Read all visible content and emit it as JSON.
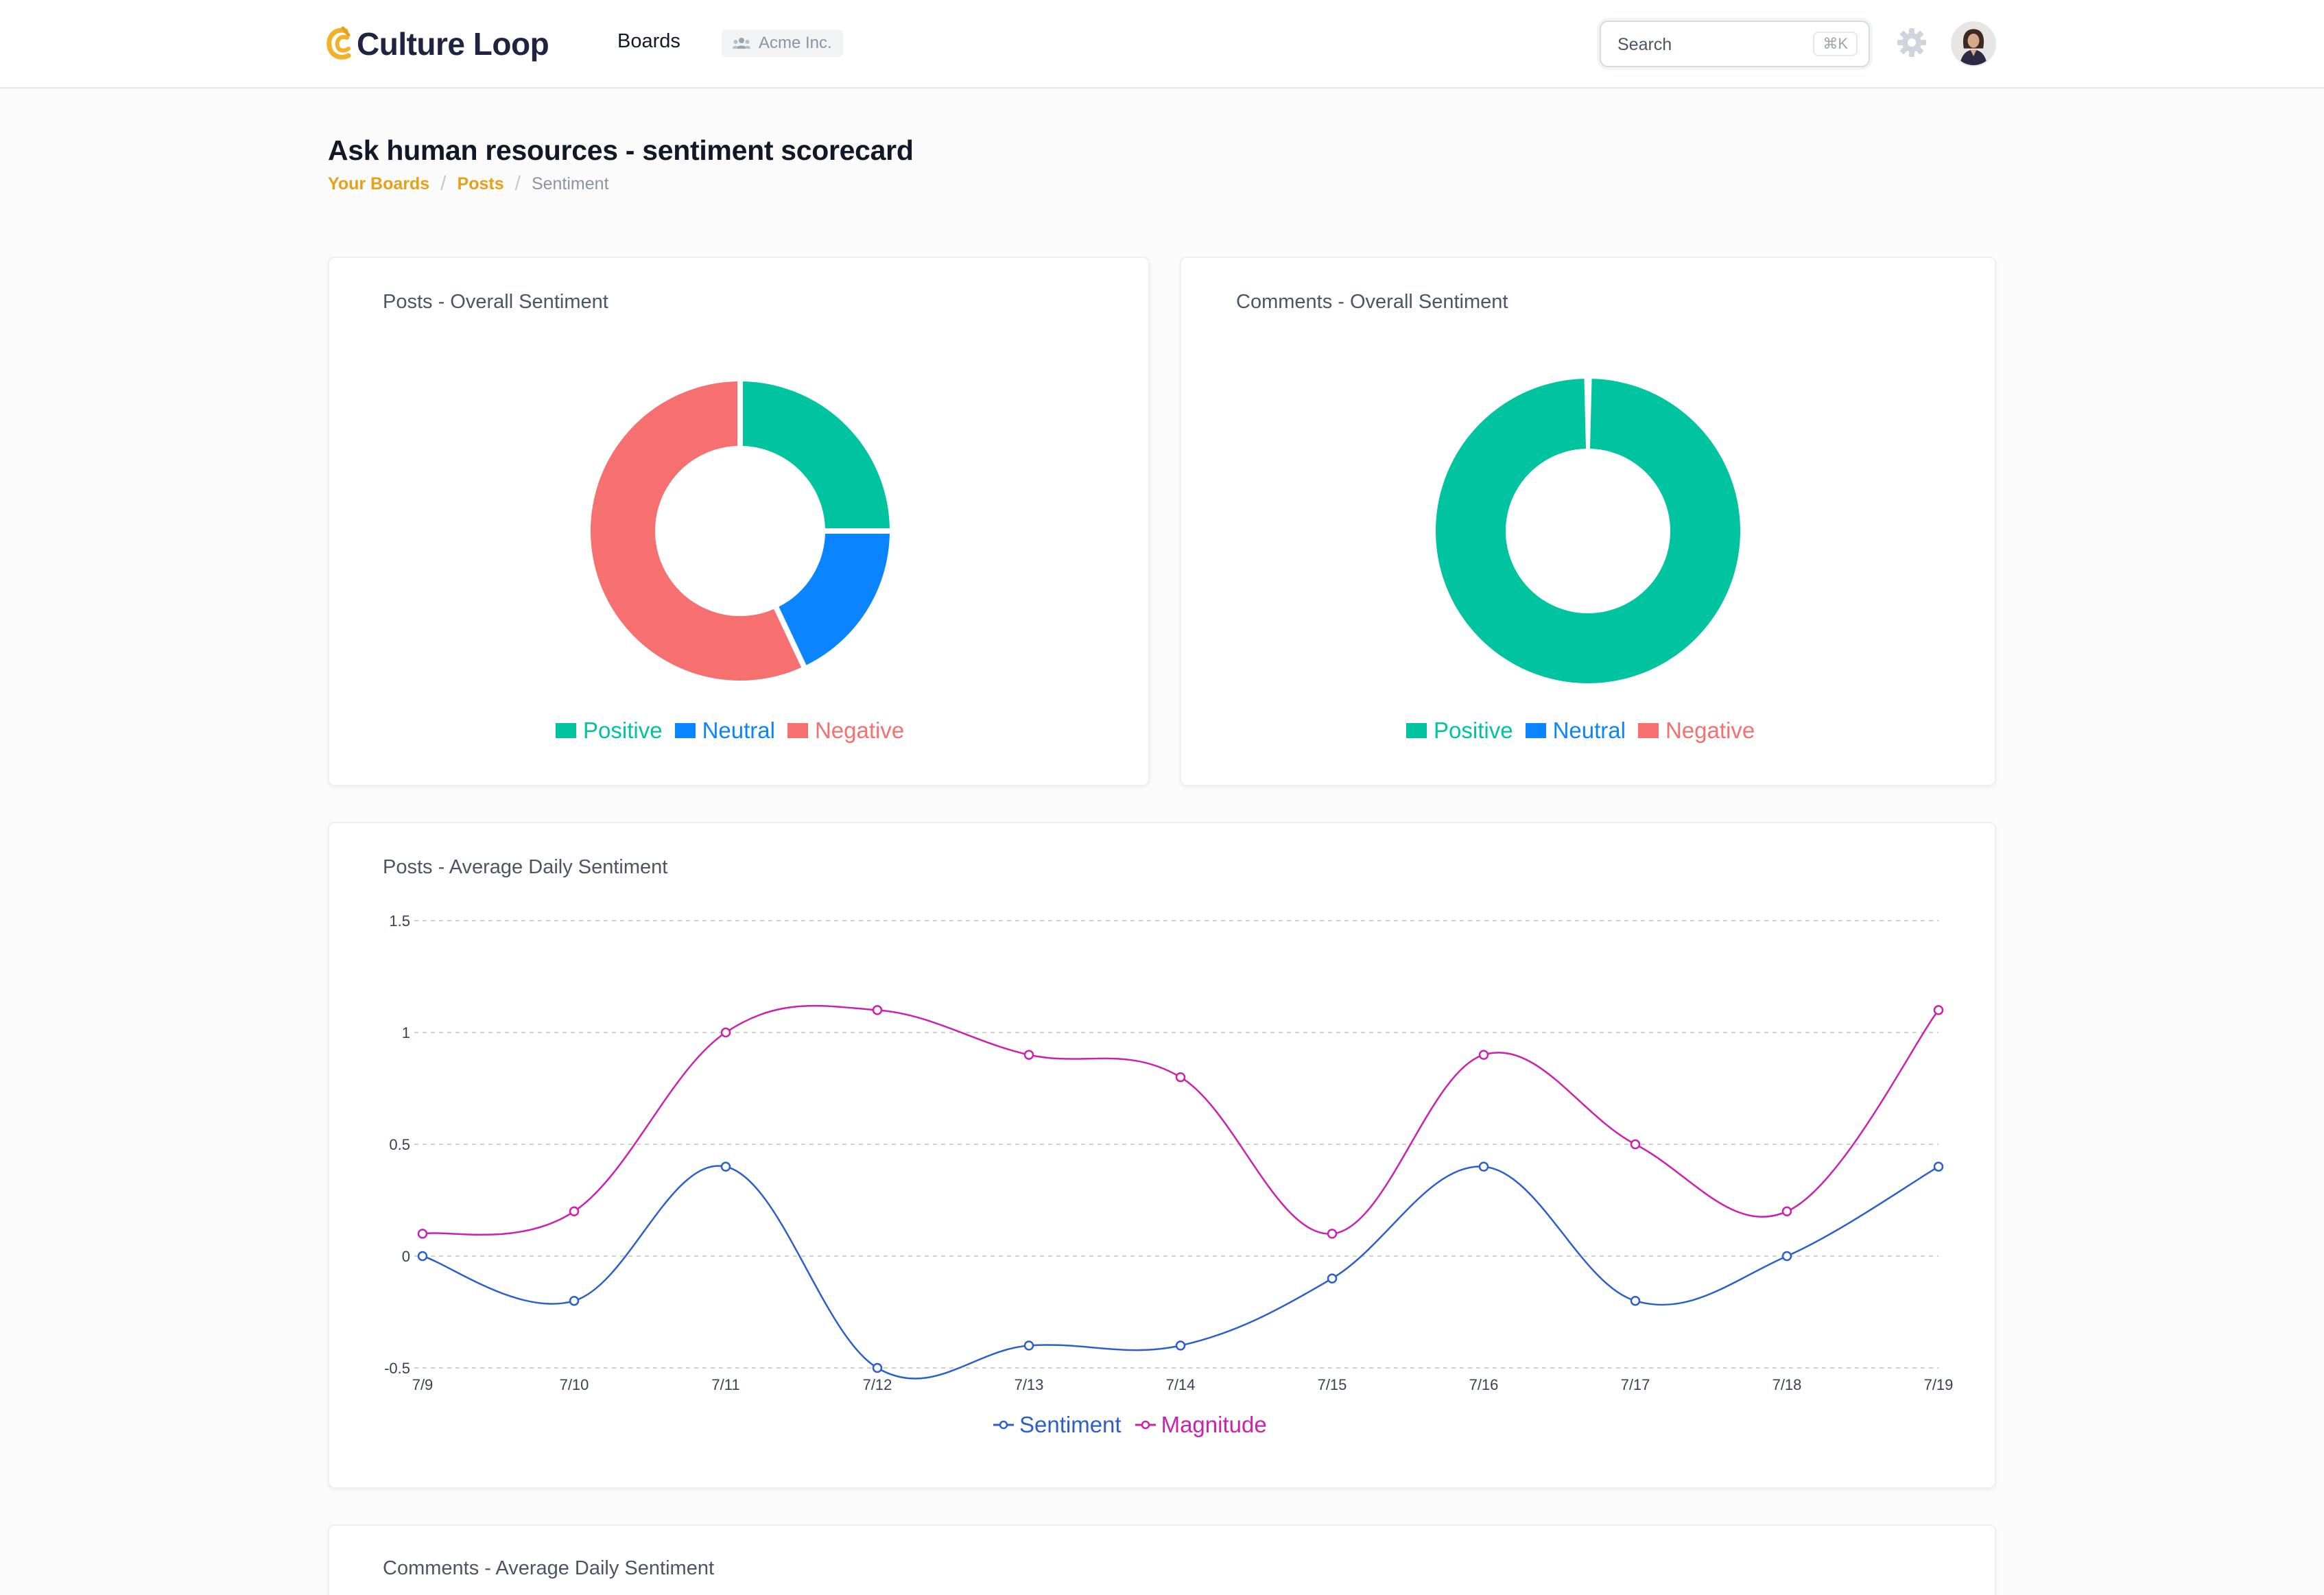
{
  "header": {
    "brand": "Culture Loop",
    "nav_boards": "Boards",
    "org_name": "Acme Inc.",
    "search_placeholder": "Search",
    "search_shortcut": "⌘K",
    "icons": [
      "logo-icon",
      "users-icon",
      "gear-icon",
      "avatar"
    ]
  },
  "page": {
    "title": "Ask human resources - sentiment scorecard",
    "breadcrumb": [
      "Your Boards",
      "Posts",
      "Sentiment"
    ]
  },
  "colors": {
    "positive": "#00c39f",
    "neutral": "#0a84ff",
    "negative": "#f6706f",
    "sentiment": "#2d5fcb",
    "magnitude": "#cc21ad",
    "accent": "#e6a019"
  },
  "cards": {
    "posts_overall": {
      "title": "Posts - Overall Sentiment"
    },
    "comments_overall": {
      "title": "Comments - Overall Sentiment"
    },
    "posts_daily": {
      "title": "Posts - Average Daily Sentiment"
    },
    "comments_daily": {
      "title": "Comments - Average Daily Sentiment"
    }
  },
  "legend_labels": {
    "positive": "Positive",
    "neutral": "Neutral",
    "negative": "Negative",
    "sentiment": "Sentiment",
    "magnitude": "Magnitude"
  },
  "chart_data": [
    {
      "type": "pie",
      "variant": "donut",
      "title": "Posts - Overall Sentiment",
      "categories": [
        "Positive",
        "Neutral",
        "Negative"
      ],
      "values": [
        25,
        18,
        57
      ],
      "legend": "bottom"
    },
    {
      "type": "pie",
      "variant": "donut",
      "title": "Comments - Overall Sentiment",
      "categories": [
        "Positive",
        "Neutral",
        "Negative"
      ],
      "values": [
        100,
        0,
        0
      ],
      "legend": "bottom"
    },
    {
      "type": "line",
      "title": "Posts - Average Daily Sentiment",
      "x": [
        "7/9",
        "7/10",
        "7/11",
        "7/12",
        "7/13",
        "7/14",
        "7/15",
        "7/16",
        "7/17",
        "7/18",
        "7/19"
      ],
      "series": [
        {
          "name": "Sentiment",
          "values": [
            0,
            -0.2,
            0.4,
            -0.5,
            -0.4,
            -0.4,
            -0.1,
            0.4,
            -0.2,
            0,
            0.4
          ]
        },
        {
          "name": "Magnitude",
          "values": [
            0.1,
            0.2,
            1,
            1.1,
            0.9,
            0.8,
            0.1,
            0.9,
            0.5,
            0.2,
            1.1
          ]
        }
      ],
      "y_ticks": [
        "1.5",
        "1",
        "0.5",
        "0",
        "-0.5"
      ],
      "ylim": [
        -0.5,
        1.5
      ],
      "grid": true,
      "legend": "bottom"
    }
  ]
}
